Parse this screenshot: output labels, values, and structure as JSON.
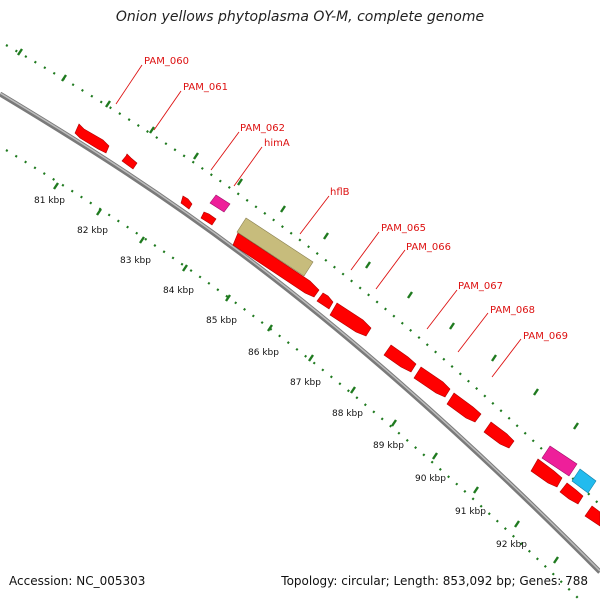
{
  "title": "Onion yellows phytoplasma OY-M, complete genome",
  "footer": {
    "accession": "Accession: NC_005303",
    "summary": "Topology: circular; Length: 853,092 bp; Genes: 788"
  },
  "colors": {
    "backbone": "#8c8c8c",
    "ticks": "#1f7a1f",
    "gene_red": "#ff0000",
    "gene_pink": "#ee1f9a",
    "gene_cyan": "#22bbee",
    "gene_olive": "#c7bc7c",
    "label": "#dd1111"
  },
  "kbp_labels": [
    "81 kbp",
    "82 kbp",
    "83 kbp",
    "84 kbp",
    "85 kbp",
    "86 kbp",
    "87 kbp",
    "88 kbp",
    "89 kbp",
    "90 kbp",
    "91 kbp",
    "92 kbp"
  ],
  "gene_labels": [
    "PAM_060",
    "PAM_061",
    "PAM_062",
    "himA",
    "hflB",
    "PAM_065",
    "PAM_066",
    "PAM_067",
    "PAM_068",
    "PAM_069"
  ]
}
